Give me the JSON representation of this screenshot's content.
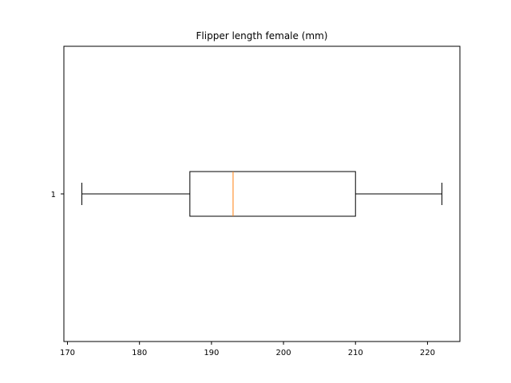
{
  "chart_data": {
    "type": "boxplot",
    "orientation": "horizontal",
    "title": "Flipper length female (mm)",
    "xlabel": "",
    "ylabel": "",
    "xlim": [
      169.5,
      224.5
    ],
    "x_ticks": [
      170,
      180,
      190,
      200,
      210,
      220
    ],
    "categories": [
      "1"
    ],
    "boxes": [
      {
        "label": "1",
        "whisker_low": 172,
        "q1": 187,
        "median": 193,
        "q3": 210,
        "whisker_high": 222
      }
    ],
    "grid": false,
    "colors": {
      "box": "#000000",
      "median": "#ff7f0e",
      "background": "#ffffff"
    }
  }
}
